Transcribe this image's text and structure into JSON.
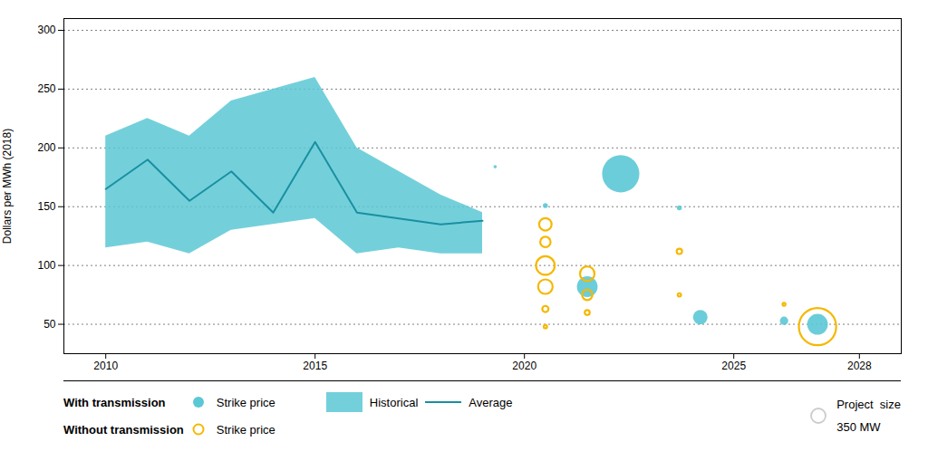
{
  "chart_data": {
    "type": "bubble",
    "ylabel": "Dollars per MWh (2018)",
    "xlim": [
      2009.0,
      2029.0
    ],
    "ylim": [
      25,
      310
    ],
    "xticks": [
      2010,
      2015,
      2020,
      2025,
      2028
    ],
    "yticks": [
      50,
      100,
      150,
      200,
      250,
      300
    ],
    "grid": true,
    "legend": "bottom",
    "marker_label": "Strike price",
    "series": [
      {
        "name": "Historical",
        "type": "area",
        "color": "#5BC8D5",
        "x": [
          2010,
          2011,
          2012,
          2013,
          2014,
          2015,
          2016,
          2017,
          2018,
          2019
        ],
        "upper": [
          210,
          225,
          210,
          240,
          250,
          260,
          200,
          180,
          160,
          145
        ],
        "lower": [
          115,
          120,
          110,
          130,
          135,
          140,
          110,
          115,
          110,
          110
        ]
      },
      {
        "name": "Average",
        "type": "line",
        "color": "#1A8FA0",
        "x": [
          2010,
          2011,
          2012,
          2013,
          2014,
          2015,
          2016,
          2017,
          2018,
          2019
        ],
        "values": [
          165,
          190,
          155,
          180,
          145,
          205,
          145,
          140,
          135,
          138
        ]
      },
      {
        "name": "With transmission",
        "type": "bubble",
        "color": "#5BC8D5",
        "marker": "filled_circle",
        "x": [
          2019.3,
          2020.5,
          2022.3,
          2023.7,
          2021.5,
          2024.2,
          2026.2,
          2027.0
        ],
        "values": [
          184,
          151,
          178,
          149,
          82,
          56,
          53,
          50
        ],
        "sizes": [
          80,
          120,
          900,
          120,
          500,
          350,
          200,
          500
        ]
      },
      {
        "name": "Without transmission",
        "type": "bubble",
        "color": "#F5B800",
        "marker": "open_circle",
        "x": [
          2020.5,
          2020.5,
          2020.5,
          2020.5,
          2020.5,
          2020.5,
          2021.5,
          2021.5,
          2021.5,
          2023.7,
          2023.7,
          2026.2,
          2027.0
        ],
        "values": [
          135,
          120,
          100,
          82,
          63,
          48,
          93,
          75,
          60,
          112,
          75,
          67,
          48
        ],
        "sizes": [
          300,
          250,
          450,
          350,
          150,
          80,
          350,
          250,
          120,
          130,
          80,
          70,
          900
        ]
      }
    ],
    "size_legend": {
      "title": "Project  size",
      "label": "350 MW",
      "value": 350,
      "color": "#CCCCCC"
    }
  }
}
